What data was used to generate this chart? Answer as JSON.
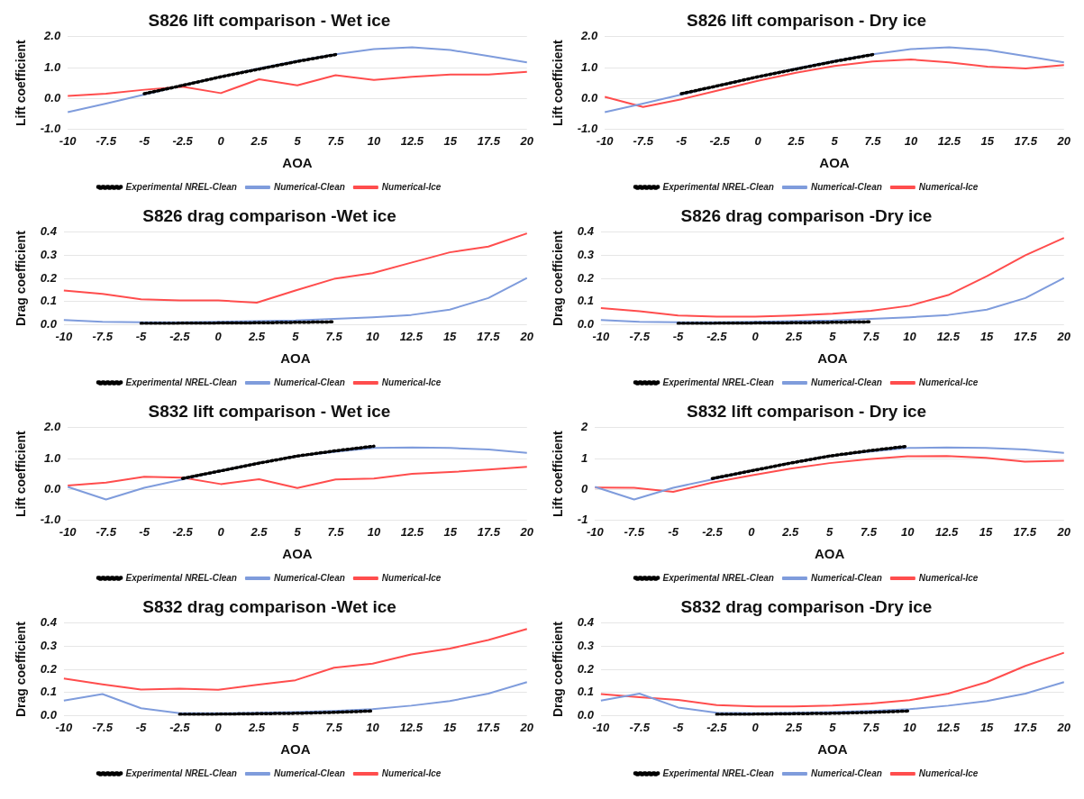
{
  "chart_data": [
    {
      "type": "line",
      "title": "S826 lift comparison - Wet ice",
      "xlabel": "AOA",
      "ylabel": "Lift coefficient",
      "categories": [
        "-10",
        "-7.5",
        "-5",
        "-2.5",
        "0",
        "2.5",
        "5",
        "7.5",
        "10",
        "12.5",
        "15",
        "17.5",
        "20"
      ],
      "ylim": [
        -1,
        2
      ],
      "yticks": [
        {
          "value": -1,
          "label": "-1.0"
        },
        {
          "value": 0,
          "label": "0.0"
        },
        {
          "value": 1,
          "label": "1.0"
        },
        {
          "value": 2,
          "label": "2.0"
        }
      ],
      "grid": "y",
      "legend": "bottom",
      "marker": "none",
      "series": [
        {
          "name": "Experimental NREL-Clean",
          "color": "#000000",
          "line_style": "dotted",
          "values": [
            null,
            null,
            0.15,
            0.42,
            0.7,
            0.95,
            1.2,
            1.42,
            null,
            null,
            null,
            null,
            null
          ]
        },
        {
          "name": "Numerical-Clean",
          "color": "#7f9cdc",
          "line_style": "solid",
          "values": [
            -0.45,
            -0.17,
            0.12,
            0.42,
            0.7,
            0.97,
            1.22,
            1.43,
            1.6,
            1.66,
            1.57,
            1.37,
            1.17
          ]
        },
        {
          "name": "Numerical-Ice",
          "color": "#ff4d4d",
          "line_style": "solid",
          "values": [
            0.08,
            0.15,
            0.28,
            0.38,
            0.17,
            0.62,
            0.42,
            0.75,
            0.6,
            0.7,
            0.77,
            0.77,
            0.86
          ]
        }
      ]
    },
    {
      "type": "line",
      "title": "S826 lift comparison - Dry ice",
      "xlabel": "AOA",
      "ylabel": "Lift coefficient",
      "categories": [
        "-10",
        "-7.5",
        "-5",
        "-2.5",
        "0",
        "2.5",
        "5",
        "7.5",
        "10",
        "12.5",
        "15",
        "17.5",
        "20"
      ],
      "ylim": [
        -1,
        2
      ],
      "yticks": [
        {
          "value": -1,
          "label": "-1.0"
        },
        {
          "value": 0,
          "label": "0.0"
        },
        {
          "value": 1,
          "label": "1.0"
        },
        {
          "value": 2,
          "label": "2.0"
        }
      ],
      "grid": "y",
      "legend": "bottom",
      "marker": "none",
      "series": [
        {
          "name": "Experimental NREL-Clean",
          "color": "#000000",
          "line_style": "dotted",
          "values": [
            null,
            null,
            0.15,
            0.42,
            0.7,
            0.95,
            1.2,
            1.42,
            null,
            null,
            null,
            null,
            null
          ]
        },
        {
          "name": "Numerical-Clean",
          "color": "#7f9cdc",
          "line_style": "solid",
          "values": [
            -0.45,
            -0.17,
            0.12,
            0.42,
            0.7,
            0.97,
            1.22,
            1.43,
            1.6,
            1.66,
            1.57,
            1.37,
            1.17
          ]
        },
        {
          "name": "Numerical-Ice",
          "color": "#ff4d4d",
          "line_style": "solid",
          "values": [
            0.05,
            -0.28,
            -0.03,
            0.27,
            0.57,
            0.83,
            1.05,
            1.2,
            1.26,
            1.17,
            1.03,
            0.97,
            1.08
          ]
        }
      ]
    },
    {
      "type": "line",
      "title": "S826 drag comparison -Wet ice",
      "xlabel": "AOA",
      "ylabel": "Drag coefficient",
      "categories": [
        "-10",
        "-7.5",
        "-5",
        "-2.5",
        "0",
        "2.5",
        "5",
        "7.5",
        "10",
        "12.5",
        "15",
        "17.5",
        "20"
      ],
      "ylim": [
        0,
        0.4
      ],
      "yticks": [
        {
          "value": 0,
          "label": "0.0"
        },
        0.1,
        0.2,
        0.3,
        0.4
      ],
      "grid": "y",
      "legend": "bottom",
      "marker": "none",
      "series": [
        {
          "name": "Experimental NREL-Clean",
          "color": "#000000",
          "line_style": "dotted",
          "values": [
            null,
            null,
            0.005,
            0.006,
            0.007,
            0.008,
            0.01,
            0.012,
            null,
            null,
            null,
            null,
            null
          ]
        },
        {
          "name": "Numerical-Clean",
          "color": "#7f9cdc",
          "line_style": "solid",
          "values": [
            0.02,
            0.012,
            0.01,
            0.01,
            0.012,
            0.015,
            0.018,
            0.025,
            0.032,
            0.042,
            0.065,
            0.115,
            0.202
          ]
        },
        {
          "name": "Numerical-Ice",
          "color": "#ff4d4d",
          "line_style": "solid",
          "values": [
            0.148,
            0.133,
            0.11,
            0.105,
            0.105,
            0.095,
            0.148,
            0.198,
            0.223,
            0.268,
            0.313,
            0.338,
            0.395
          ]
        }
      ]
    },
    {
      "type": "line",
      "title": "S826 drag comparison -Dry ice",
      "xlabel": "AOA",
      "ylabel": "Drag coefficient",
      "categories": [
        "-10",
        "-7.5",
        "-5",
        "-2.5",
        "0",
        "2.5",
        "5",
        "7.5",
        "10",
        "12.5",
        "15",
        "17.5",
        "20"
      ],
      "ylim": [
        0,
        0.4
      ],
      "yticks": [
        {
          "value": 0,
          "label": "0.0"
        },
        0.1,
        0.2,
        0.3,
        0.4
      ],
      "grid": "y",
      "legend": "bottom",
      "marker": "none",
      "series": [
        {
          "name": "Experimental NREL-Clean",
          "color": "#000000",
          "line_style": "dotted",
          "values": [
            null,
            null,
            0.005,
            0.006,
            0.007,
            0.008,
            0.01,
            0.012,
            null,
            null,
            null,
            null,
            null
          ]
        },
        {
          "name": "Numerical-Clean",
          "color": "#7f9cdc",
          "line_style": "solid",
          "values": [
            0.02,
            0.012,
            0.01,
            0.01,
            0.012,
            0.015,
            0.018,
            0.025,
            0.032,
            0.042,
            0.065,
            0.115,
            0.202
          ]
        },
        {
          "name": "Numerical-Ice",
          "color": "#ff4d4d",
          "line_style": "solid",
          "values": [
            0.072,
            0.058,
            0.04,
            0.035,
            0.035,
            0.04,
            0.047,
            0.06,
            0.082,
            0.128,
            0.21,
            0.3,
            0.375
          ]
        }
      ]
    },
    {
      "type": "line",
      "title": "S832 lift comparison - Wet ice",
      "xlabel": "AOA",
      "ylabel": "Lift coefficient",
      "categories": [
        "-10",
        "-7.5",
        "-5",
        "-2.5",
        "0",
        "2.5",
        "5",
        "7.5",
        "10",
        "12.5",
        "15",
        "17.5",
        "20"
      ],
      "ylim": [
        -1,
        2
      ],
      "yticks": [
        {
          "value": -1,
          "label": "-1.0"
        },
        {
          "value": 0,
          "label": "0.0"
        },
        {
          "value": 1,
          "label": "1.0"
        },
        {
          "value": 2,
          "label": "2.0"
        }
      ],
      "grid": "y",
      "legend": "bottom",
      "marker": "none",
      "series": [
        {
          "name": "Experimental NREL-Clean",
          "color": "#000000",
          "line_style": "dotted",
          "values": [
            null,
            null,
            null,
            0.35,
            0.6,
            0.85,
            1.08,
            1.25,
            1.4,
            null,
            null,
            null,
            null
          ]
        },
        {
          "name": "Numerical-Clean",
          "color": "#7f9cdc",
          "line_style": "solid",
          "values": [
            0.08,
            -0.33,
            0.05,
            0.32,
            0.6,
            0.85,
            1.08,
            1.22,
            1.34,
            1.36,
            1.34,
            1.29,
            1.18
          ]
        },
        {
          "name": "Numerical-Ice",
          "color": "#ff4d4d",
          "line_style": "solid",
          "values": [
            0.12,
            0.22,
            0.41,
            0.38,
            0.17,
            0.33,
            0.04,
            0.32,
            0.35,
            0.5,
            0.56,
            0.64,
            0.73
          ]
        }
      ]
    },
    {
      "type": "line",
      "title": "S832 lift comparison - Dry ice",
      "xlabel": "AOA",
      "ylabel": "Lift coefficient",
      "categories": [
        "-10",
        "-7.5",
        "-5",
        "-2.5",
        "0",
        "2.5",
        "5",
        "7.5",
        "10",
        "12.5",
        "15",
        "17.5",
        "20"
      ],
      "ylim": [
        -1,
        2
      ],
      "yticks": [
        -1,
        0,
        1,
        2
      ],
      "grid": "y",
      "legend": "bottom",
      "marker": "none",
      "series": [
        {
          "name": "Experimental NREL-Clean",
          "color": "#000000",
          "line_style": "dotted",
          "values": [
            null,
            null,
            null,
            0.35,
            0.6,
            0.85,
            1.08,
            1.25,
            1.4,
            null,
            null,
            null,
            null
          ]
        },
        {
          "name": "Numerical-Clean",
          "color": "#7f9cdc",
          "line_style": "solid",
          "values": [
            0.08,
            -0.33,
            0.05,
            0.32,
            0.6,
            0.85,
            1.08,
            1.22,
            1.34,
            1.36,
            1.34,
            1.29,
            1.18
          ]
        },
        {
          "name": "Numerical-Ice",
          "color": "#ff4d4d",
          "line_style": "solid",
          "values": [
            0.06,
            0.05,
            -0.08,
            0.22,
            0.45,
            0.67,
            0.85,
            0.98,
            1.07,
            1.08,
            1.02,
            0.9,
            0.93
          ]
        }
      ]
    },
    {
      "type": "line",
      "title": "S832 drag comparison -Wet ice",
      "xlabel": "AOA",
      "ylabel": "Drag coefficient",
      "categories": [
        "-10",
        "-7.5",
        "-5",
        "-2.5",
        "0",
        "2.5",
        "5",
        "7.5",
        "10",
        "12.5",
        "15",
        "17.5",
        "20"
      ],
      "ylim": [
        0,
        0.4
      ],
      "yticks": [
        {
          "value": 0,
          "label": "0.0"
        },
        0.1,
        0.2,
        0.3,
        0.4
      ],
      "grid": "y",
      "legend": "bottom",
      "marker": "none",
      "series": [
        {
          "name": "Experimental NREL-Clean",
          "color": "#000000",
          "line_style": "dotted",
          "values": [
            null,
            null,
            null,
            0.005,
            0.006,
            0.008,
            0.01,
            0.014,
            0.02,
            null,
            null,
            null,
            null
          ]
        },
        {
          "name": "Numerical-Clean",
          "color": "#7f9cdc",
          "line_style": "solid",
          "values": [
            0.065,
            0.093,
            0.032,
            0.01,
            0.01,
            0.012,
            0.015,
            0.02,
            0.028,
            0.043,
            0.063,
            0.095,
            0.145
          ]
        },
        {
          "name": "Numerical-Ice",
          "color": "#ff4d4d",
          "line_style": "solid",
          "values": [
            0.16,
            0.135,
            0.113,
            0.117,
            0.112,
            0.133,
            0.153,
            0.207,
            0.225,
            0.265,
            0.29,
            0.327,
            0.375
          ]
        }
      ]
    },
    {
      "type": "line",
      "title": "S832 drag comparison -Dry ice",
      "xlabel": "AOA",
      "ylabel": "Drag coefficient",
      "categories": [
        "-10",
        "-7.5",
        "-5",
        "-2.5",
        "0",
        "2.5",
        "5",
        "7.5",
        "10",
        "12.5",
        "15",
        "17.5",
        "20"
      ],
      "ylim": [
        0,
        0.4
      ],
      "yticks": [
        {
          "value": 0,
          "label": "0.0"
        },
        0.1,
        0.2,
        0.3,
        0.4
      ],
      "grid": "y",
      "legend": "bottom",
      "marker": "none",
      "series": [
        {
          "name": "Experimental NREL-Clean",
          "color": "#000000",
          "line_style": "dotted",
          "values": [
            null,
            null,
            null,
            0.005,
            0.006,
            0.008,
            0.01,
            0.014,
            0.02,
            null,
            null,
            null,
            null
          ]
        },
        {
          "name": "Numerical-Clean",
          "color": "#7f9cdc",
          "line_style": "solid",
          "values": [
            0.065,
            0.095,
            0.035,
            0.012,
            0.01,
            0.012,
            0.015,
            0.02,
            0.028,
            0.043,
            0.063,
            0.095,
            0.145
          ]
        },
        {
          "name": "Numerical-Ice",
          "color": "#ff4d4d",
          "line_style": "solid",
          "values": [
            0.093,
            0.08,
            0.068,
            0.045,
            0.04,
            0.04,
            0.043,
            0.052,
            0.067,
            0.095,
            0.145,
            0.215,
            0.272
          ]
        }
      ]
    }
  ]
}
